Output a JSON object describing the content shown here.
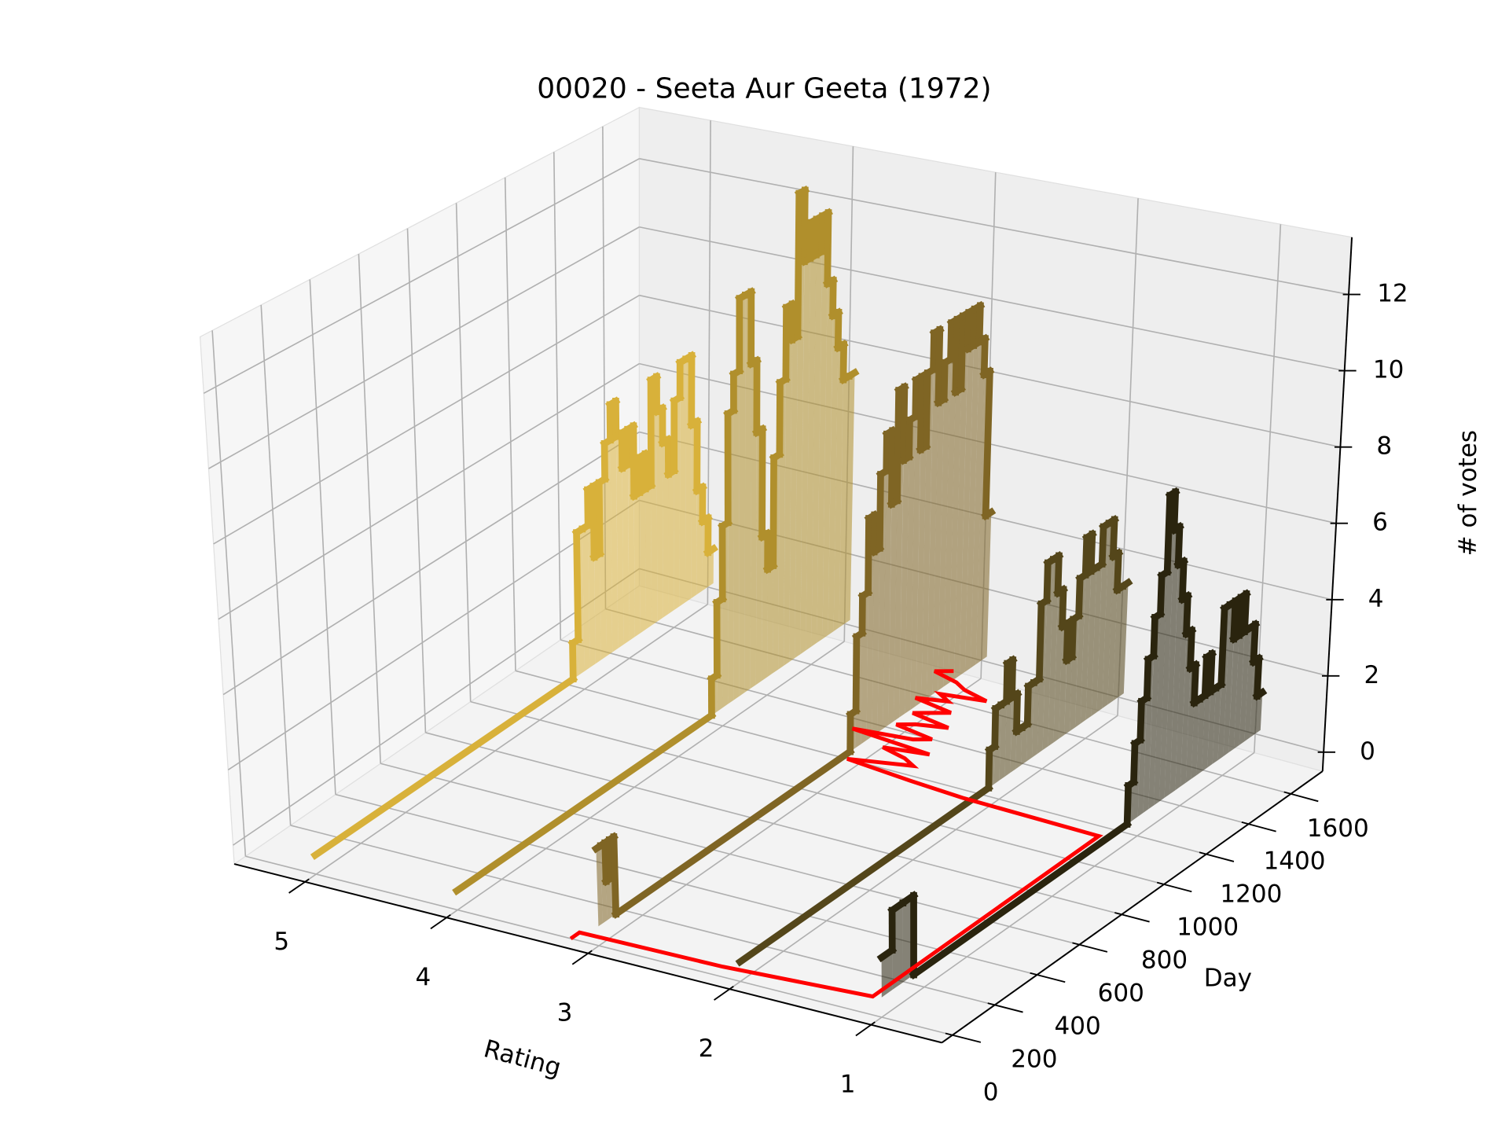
{
  "chart_data": {
    "type": "step3d",
    "title": "00020 - Seeta Aur Geeta (1972)",
    "xlabel": "Rating",
    "ylabel": "Day",
    "zlabel": "# of votes",
    "xlim": [
      0.5,
      5.5
    ],
    "xticks": [
      1,
      2,
      3,
      4,
      5
    ],
    "ylim": [
      -50,
      1750
    ],
    "yticks": [
      0,
      200,
      400,
      600,
      800,
      1000,
      1200,
      1400,
      1600
    ],
    "zlim": [
      -0.5,
      13.5
    ],
    "zticks": [
      0,
      2,
      4,
      6,
      8,
      10,
      12
    ],
    "grid": true,
    "series": [
      {
        "rating": 5,
        "color": "#d8b13a",
        "x": [
          0,
          1150,
          1175,
          1200,
          1225,
          1250,
          1275,
          1300,
          1325,
          1350,
          1375,
          1400,
          1425,
          1450,
          1475,
          1500,
          1525,
          1550,
          1575,
          1600,
          1625,
          1650,
          1675,
          1700,
          1725,
          1750
        ],
        "values": [
          0,
          1,
          4,
          4,
          5,
          3,
          5,
          6,
          7,
          6,
          5,
          6,
          4,
          5,
          4,
          7,
          6,
          5,
          4,
          6,
          7,
          7,
          5,
          3,
          2,
          1
        ]
      },
      {
        "rating": 4,
        "color": "#b08f2c",
        "x": [
          0,
          1150,
          1175,
          1200,
          1225,
          1250,
          1275,
          1300,
          1325,
          1350,
          1375,
          1400,
          1425,
          1450,
          1475,
          1500,
          1525,
          1550,
          1575,
          1600,
          1625,
          1650,
          1675,
          1700,
          1725,
          1750
        ],
        "values": [
          0,
          1,
          3,
          5,
          8,
          9,
          11,
          11,
          9,
          7,
          4,
          3,
          6,
          8,
          10,
          9,
          13,
          11,
          12,
          11,
          12,
          10,
          9,
          8,
          7,
          7
        ]
      },
      {
        "rating": 3,
        "color": "#7f6524",
        "x": [
          0,
          20,
          40,
          60,
          80,
          1150,
          1175,
          1200,
          1225,
          1250,
          1275,
          1300,
          1325,
          1350,
          1375,
          1400,
          1425,
          1450,
          1475,
          1500,
          1525,
          1550,
          1575,
          1600,
          1625,
          1650,
          1675,
          1700,
          1725,
          1750
        ],
        "values": [
          2,
          2,
          1,
          2,
          0,
          1,
          3,
          4,
          6,
          5,
          7,
          8,
          6,
          9,
          7,
          8,
          9,
          7,
          9,
          10,
          8,
          9,
          10,
          8,
          10,
          9,
          10,
          9,
          8,
          4
        ]
      },
      {
        "rating": 2,
        "color": "#54461a",
        "x": [
          0,
          1150,
          1175,
          1200,
          1225,
          1250,
          1275,
          1300,
          1325,
          1350,
          1375,
          1400,
          1425,
          1450,
          1475,
          1500,
          1525,
          1550,
          1575,
          1600,
          1625,
          1650,
          1675,
          1700,
          1725,
          1750
        ],
        "values": [
          0,
          1,
          2,
          2,
          3,
          2,
          1,
          1,
          2,
          2,
          4,
          5,
          5,
          4,
          3,
          2,
          3,
          4,
          5,
          4,
          4,
          5,
          5,
          4,
          3,
          3
        ]
      },
      {
        "rating": 1,
        "color": "#2a240e",
        "x": [
          0,
          50,
          100,
          150,
          1150,
          1175,
          1200,
          1225,
          1250,
          1275,
          1300,
          1325,
          1350,
          1375,
          1400,
          1425,
          1450,
          1475,
          1500,
          1525,
          1550,
          1575,
          1600,
          1625,
          1650,
          1675,
          1700,
          1725,
          1750
        ],
        "values": [
          1,
          2,
          2,
          0,
          1,
          2,
          3,
          4,
          5,
          6,
          8,
          7,
          6,
          5,
          4,
          3,
          2,
          2,
          3,
          2,
          2,
          4,
          4,
          3,
          4,
          3,
          3,
          2,
          1
        ]
      }
    ],
    "mean_line": {
      "color": "#ff0000",
      "x": [
        0,
        40,
        50,
        90,
        1150,
        1160,
        1175,
        1200,
        1225,
        1250,
        1275,
        1300,
        1325,
        1350,
        1375,
        1400,
        1425,
        1450,
        1475,
        1500,
        1525,
        1550,
        1575,
        1600,
        1625,
        1650,
        1675,
        1700,
        1725,
        1750
      ],
      "values": [
        3.2,
        3.2,
        2.2,
        1.2,
        1.2,
        2.2,
        2.6,
        3.1,
        2.9,
        2.7,
        2.8,
        3.0,
        2.7,
        3.3,
        2.9,
        2.8,
        3.1,
        3.0,
        2.8,
        3.1,
        3.0,
        2.9,
        3.2,
        3.0,
        3.1,
        2.8,
        3.0,
        3.1,
        3.3,
        3.2
      ]
    }
  }
}
